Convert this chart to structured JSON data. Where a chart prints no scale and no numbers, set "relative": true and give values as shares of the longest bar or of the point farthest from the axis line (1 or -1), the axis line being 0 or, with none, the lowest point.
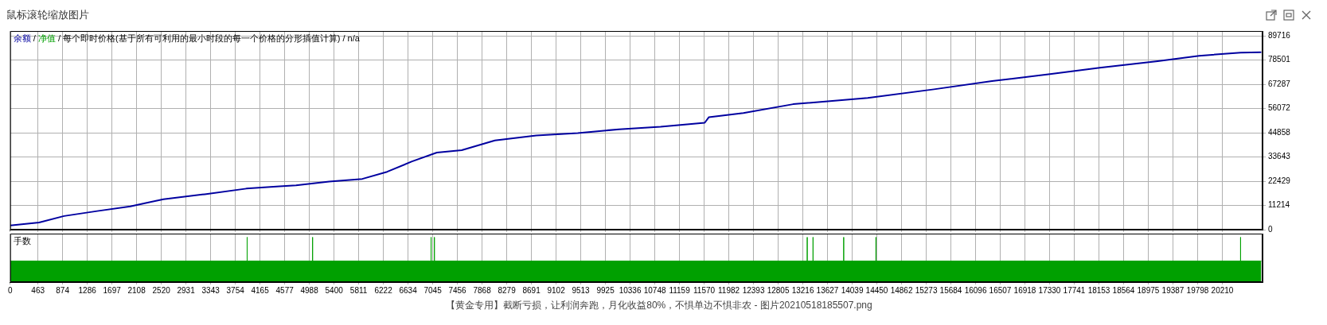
{
  "chart_data": [
    {
      "type": "line",
      "title": "每个即时价格(基于所有可利用的最小时段的每一个价格的分形插值计算) / n/a",
      "annotations": [
        "鼠标滚轮缩放图片",
        "【黄金专用】截断亏损，让利润奔跑，月化收益80%，不惧单边不惧非农 - 图片20210518185507.png",
        "/"
      ],
      "series": [
        {
          "name": "余额",
          "color": "#0000a0",
          "x": [
            0,
            483,
            898,
            1450,
            2003,
            2556,
            3246,
            3937,
            4490,
            4766,
            5318,
            5871,
            6285,
            6700,
            7114,
            7529,
            8081,
            8772,
            9463,
            10153,
            10844,
            11580,
            11650,
            12225,
            13054,
            14298,
            15403,
            16370,
            17337,
            18166,
            19132,
            19823,
            20514,
            20859
          ],
          "values": [
            1900,
            3300,
            6300,
            8600,
            10800,
            14100,
            16400,
            19000,
            20100,
            20500,
            22300,
            23500,
            26800,
            31600,
            35700,
            36800,
            41300,
            43600,
            44700,
            46500,
            47700,
            49500,
            52100,
            54000,
            58100,
            61000,
            65000,
            68800,
            72000,
            75000,
            78000,
            80500,
            82000,
            82200
          ]
        },
        {
          "name": "净值",
          "color": "#00a000"
        }
      ],
      "xlim": [
        0,
        20880
      ],
      "xticks": [
        0,
        463,
        874,
        1286,
        1697,
        2108,
        2520,
        2931,
        3343,
        3754,
        4165,
        4577,
        4988,
        5400,
        5811,
        6222,
        6634,
        7045,
        7456,
        7868,
        8279,
        8691,
        9102,
        9513,
        9925,
        10336,
        10748,
        11159,
        11570,
        11982,
        12393,
        12805,
        13216,
        13627,
        14039,
        14450,
        14862,
        15273,
        15684,
        16096,
        16507,
        16918,
        17330,
        17741,
        18153,
        18564,
        18975,
        19387,
        19798,
        20210
      ],
      "ylim": [
        0,
        92000
      ],
      "yticks": [
        0,
        11214,
        22429,
        33643,
        44858,
        56072,
        67287,
        78501,
        89716
      ],
      "grid": true,
      "legend": "top left",
      "tick_labels": "y"
    },
    {
      "type": "area",
      "title": "手数",
      "relative": true,
      "grid": "x",
      "series": [
        {
          "color": "#00a000",
          "x": [
            0,
            3951,
            3951,
            3951,
            5042,
            5042,
            5042,
            7018,
            7018,
            7018,
            7073,
            7073,
            7073,
            13289,
            13289,
            13289,
            13386,
            13386,
            13386,
            13897,
            13897,
            13897,
            14435,
            14435,
            14435,
            20514,
            20514,
            20514,
            20859
          ],
          "values": [
            0.47,
            0.47,
            1,
            0.47,
            0.47,
            1,
            0.47,
            0.47,
            1,
            0.47,
            0.47,
            1,
            0.47,
            0.47,
            1,
            0.47,
            0.47,
            1,
            0.47,
            0.47,
            1,
            0.47,
            0.47,
            1,
            0.47,
            0.47,
            1,
            0.47,
            0.47
          ]
        }
      ],
      "xlim": [
        0,
        20880
      ],
      "xticks": [
        0,
        463,
        874,
        1286,
        1697,
        2108,
        2520,
        2931,
        3343,
        3754,
        4165,
        4577,
        4988,
        5400,
        5811,
        6222,
        6634,
        7045,
        7456,
        7868,
        8279,
        8691,
        9102,
        9513,
        9925,
        10336,
        10748,
        11159,
        11570,
        11982,
        12393,
        12805,
        13216,
        13627,
        14039,
        14450,
        14862,
        15273,
        15684,
        16096,
        16507,
        16918,
        17330,
        17741,
        18153,
        18564,
        18975,
        19387,
        19798,
        20210
      ]
    }
  ]
}
